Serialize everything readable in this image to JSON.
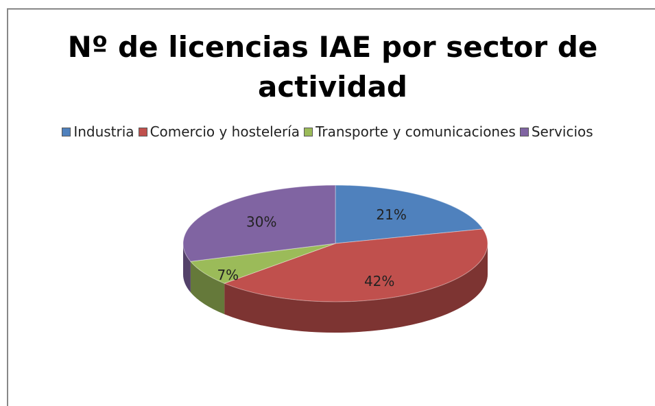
{
  "chart_data": {
    "type": "pie",
    "title": "Nº de licencias IAE por sector de actividad",
    "categories": [
      "Industria",
      "Comercio y hostelería",
      "Transporte y comunicaciones",
      "Servicios"
    ],
    "values": [
      21,
      42,
      7,
      30
    ],
    "value_labels": [
      "21%",
      "42%",
      "7%",
      "30%"
    ],
    "colors": [
      "#4f81bd",
      "#c0504d",
      "#9bbb59",
      "#8064a2"
    ],
    "legend": "top"
  }
}
